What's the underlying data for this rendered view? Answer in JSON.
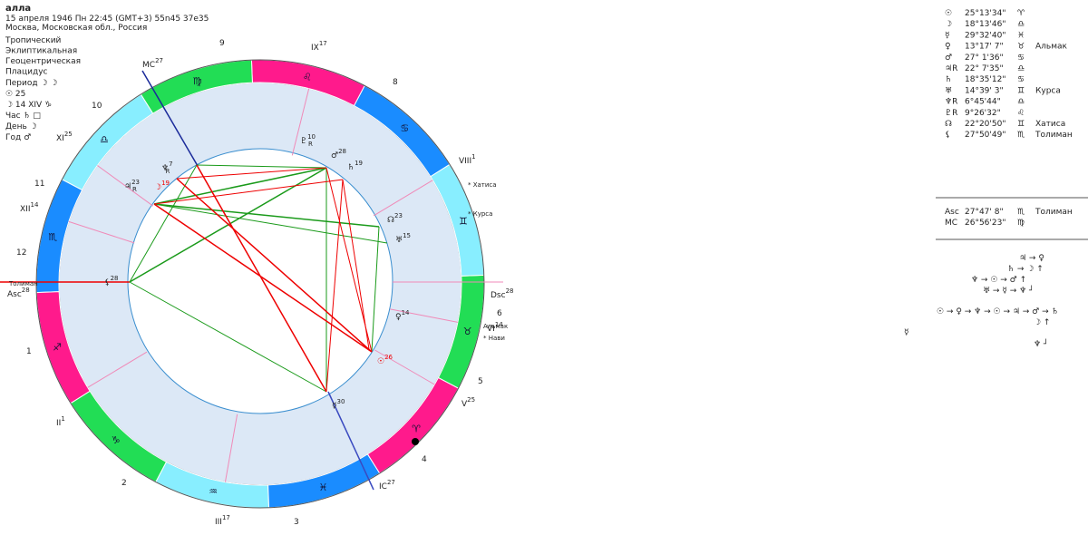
{
  "header": {
    "name": "алла",
    "datetime": "15 апреля 1946  Пн  22:45 (GMT+3) 55n45  37e35",
    "place": "Москва, Московская обл., Россия"
  },
  "settings": [
    "Тропический",
    "Эклиптикальная",
    "Геоцентрическая",
    "Плацидус"
  ],
  "rulers": [
    "Период ☽ ☽",
    "☉  25",
    "☽  14 XIV ♑",
    "Час ♄ □",
    "День ☽",
    "Год ♂"
  ],
  "wheel": {
    "signs": [
      "♈",
      "♉",
      "♊",
      "♋",
      "♌",
      "♍",
      "♎",
      "♏",
      "♐",
      "♑",
      "♒",
      "♓"
    ],
    "sign_colors": [
      "#ff1a8c",
      "#22dd55",
      "#88eeff",
      "#1a8cff"
    ],
    "house_numbers": [
      9,
      8,
      10,
      11,
      12,
      1,
      2,
      3,
      4,
      5,
      6
    ],
    "cusps": [
      {
        "label": "MC",
        "degree": 27
      },
      {
        "label": "IX",
        "degree": 17
      },
      {
        "label": "VIII",
        "degree": 1
      },
      {
        "label": "Dsc",
        "degree": 28
      },
      {
        "label": "VI",
        "degree": 14
      },
      {
        "label": "V",
        "degree": 25
      },
      {
        "label": "IC",
        "degree": 27
      },
      {
        "label": "III",
        "degree": 17
      },
      {
        "label": "II",
        "degree": 1
      },
      {
        "label": "Asc",
        "degree": 28
      },
      {
        "label": "XII",
        "degree": 14
      },
      {
        "label": "XI",
        "degree": 25
      }
    ],
    "planets": [
      {
        "glyph": "♆",
        "degree": 7,
        "retro": "R"
      },
      {
        "glyph": "♃",
        "degree": 23,
        "retro": "R"
      },
      {
        "glyph": "☽",
        "degree": 19
      },
      {
        "glyph": "♇",
        "degree": 10,
        "retro": "R"
      },
      {
        "glyph": "♂",
        "degree": 28
      },
      {
        "glyph": "♄",
        "degree": 19
      },
      {
        "glyph": "☊",
        "degree": 23
      },
      {
        "glyph": "♅",
        "degree": 15
      },
      {
        "glyph": "⚸",
        "degree": 28
      },
      {
        "glyph": "♀",
        "degree": 14
      },
      {
        "glyph": "☉",
        "degree": 26
      },
      {
        "glyph": "☿",
        "degree": 30
      }
    ],
    "stars": [
      "* Хатиса",
      "* Курса",
      "Альмак",
      "* Нави",
      "Толиман"
    ]
  },
  "positions": {
    "planets": [
      {
        "symbol": "☉",
        "position": "25°13'34\"",
        "sign": "♈"
      },
      {
        "symbol": "☽",
        "position": "18°13'46\"",
        "sign": "♎"
      },
      {
        "symbol": "☿",
        "position": "29°32'40\"",
        "sign": "♓"
      },
      {
        "symbol": "♀",
        "position": "13°17' 7\"",
        "sign": "♉",
        "star": "Альмак"
      },
      {
        "symbol": "♂",
        "position": "27° 1'36\"",
        "sign": "♋"
      },
      {
        "symbol": "♃R",
        "position": "22° 7'35\"",
        "sign": "♎"
      },
      {
        "symbol": "♄",
        "position": "18°35'12\"",
        "sign": "♋"
      },
      {
        "symbol": "♅",
        "position": "14°39' 3\"",
        "sign": "♊",
        "star": "Курса"
      },
      {
        "symbol": "♆R",
        "position": "6°45'44\"",
        "sign": "♎"
      },
      {
        "symbol": "♇R",
        "position": "9°26'32\"",
        "sign": "♌"
      },
      {
        "symbol": "☊",
        "position": "22°20'50\"",
        "sign": "♊",
        "star": "Хатиса"
      },
      {
        "symbol": "⚸",
        "position": "27°50'49\"",
        "sign": "♏",
        "star": "Толиман"
      }
    ],
    "angles": [
      {
        "symbol": "Asc",
        "position": "27°47' 8\"",
        "sign": "♏",
        "star": "Толиман"
      },
      {
        "symbol": "MC",
        "position": "26°56'23\"",
        "sign": "♍"
      }
    ]
  },
  "dispositors": [
    "♃ → ♀",
    "♄ → ☽ ↑",
    "♆ → ☉ → ♂ ↑",
    "♅ → ☿ → ♆ ┘",
    "☉ → ♀ → ♆ → ☉ → ♃ → ♂ → ♄",
    "☽ ↑",
    "♆ ┘",
    "☿"
  ]
}
